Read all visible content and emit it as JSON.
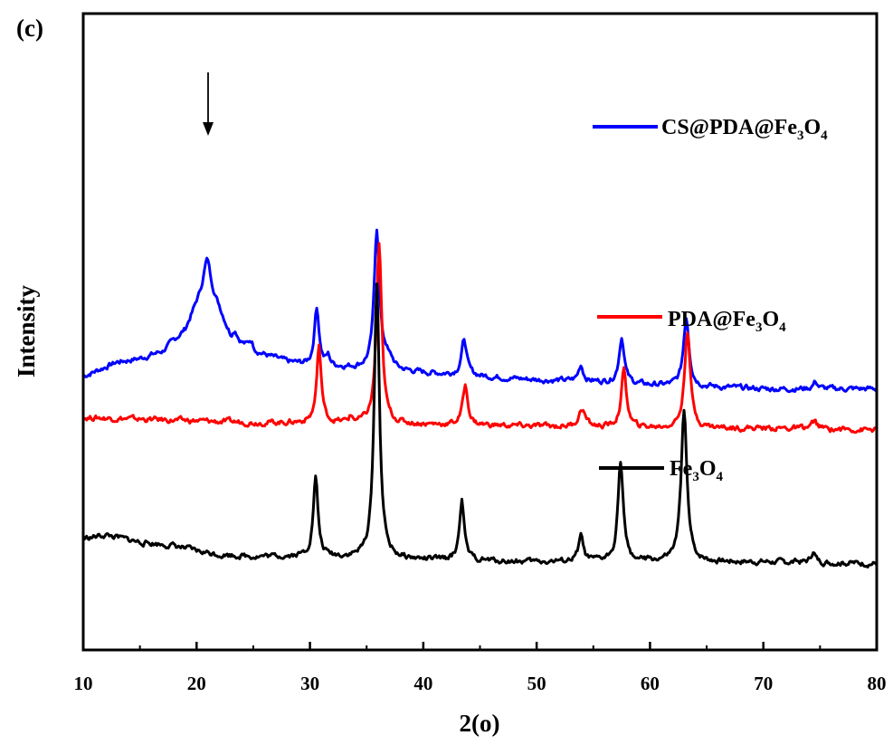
{
  "panel_label": "(c)",
  "chart_data": {
    "type": "line",
    "title": "",
    "xlabel": "2(o)",
    "ylabel": "Intensity",
    "xlim": [
      10,
      80
    ],
    "x_ticks": [
      10,
      20,
      30,
      40,
      50,
      60,
      70,
      80
    ],
    "y_ticks_shown": false,
    "grid": false,
    "legend_placement": "inline-right",
    "annotation": {
      "type": "arrow",
      "x": 21,
      "points_to": "CS@PDA@Fe3O4 broad peak"
    },
    "series": [
      {
        "name": "CS@PDA@Fe3O4",
        "legend_parts": {
          "a": "CS@PDA@Fe",
          "s1": "3",
          "b": "O",
          "s2": "4"
        },
        "color": "#0000ff",
        "baseline": 0.23,
        "background": [
          [
            10,
            0.02
          ],
          [
            13,
            0.1
          ],
          [
            15,
            0.12
          ],
          [
            17,
            0.16
          ],
          [
            19,
            0.28
          ],
          [
            20,
            0.42
          ],
          [
            21,
            0.52
          ],
          [
            22,
            0.4
          ],
          [
            23,
            0.24
          ],
          [
            25,
            0.16
          ],
          [
            28,
            0.1
          ],
          [
            30,
            0.08
          ],
          [
            33,
            0.07
          ],
          [
            36,
            0.06
          ],
          [
            40,
            0.04
          ],
          [
            45,
            0.02
          ],
          [
            50,
            0.0
          ],
          [
            55,
            -0.01
          ],
          [
            60,
            -0.03
          ],
          [
            65,
            -0.04
          ],
          [
            70,
            -0.05
          ],
          [
            75,
            -0.05
          ],
          [
            80,
            -0.05
          ]
        ],
        "peaks": [
          [
            20.9,
            0.16,
            0.4
          ],
          [
            23.4,
            0.05,
            0.25
          ],
          [
            24.8,
            0.05,
            0.25
          ],
          [
            30.6,
            0.33,
            0.25
          ],
          [
            31.6,
            0.05,
            0.2
          ],
          [
            35.9,
            0.78,
            0.28
          ],
          [
            36.7,
            0.06,
            0.3
          ],
          [
            37.2,
            0.03,
            0.3
          ],
          [
            43.6,
            0.2,
            0.28
          ],
          [
            53.9,
            0.09,
            0.25
          ],
          [
            57.5,
            0.26,
            0.28
          ],
          [
            63.2,
            0.39,
            0.3
          ],
          [
            74.6,
            0.04,
            0.25
          ]
        ]
      },
      {
        "name": "PDA@Fe3O4",
        "legend_parts": {
          "a": "PDA@Fe",
          "s1": "3",
          "b": "O",
          "s2": "4"
        },
        "color": "#ff0000",
        "baseline": 0.0,
        "background": [
          [
            10,
            0.02
          ],
          [
            15,
            0.01
          ],
          [
            20,
            0.0
          ],
          [
            25,
            -0.01
          ],
          [
            30,
            -0.01
          ],
          [
            40,
            -0.02
          ],
          [
            50,
            -0.03
          ],
          [
            60,
            -0.04
          ],
          [
            70,
            -0.04
          ],
          [
            80,
            -0.05
          ]
        ],
        "peaks": [
          [
            30.8,
            0.42,
            0.25
          ],
          [
            33.6,
            0.03,
            0.2
          ],
          [
            36.1,
            1.0,
            0.28
          ],
          [
            43.7,
            0.22,
            0.28
          ],
          [
            54.0,
            0.1,
            0.35
          ],
          [
            57.7,
            0.32,
            0.28
          ],
          [
            63.3,
            0.55,
            0.3
          ],
          [
            74.5,
            0.04,
            0.3
          ]
        ]
      },
      {
        "name": "Fe3O4",
        "legend_parts": {
          "a": "Fe",
          "s1": "3",
          "b": "O",
          "s2": "4"
        },
        "color": "#000000",
        "baseline": -0.78,
        "background": [
          [
            10,
            0.12
          ],
          [
            12,
            0.14
          ],
          [
            15,
            0.1
          ],
          [
            18,
            0.08
          ],
          [
            20,
            0.05
          ],
          [
            22,
            0.03
          ],
          [
            25,
            0.02
          ],
          [
            30,
            0.02
          ],
          [
            40,
            0.0
          ],
          [
            50,
            -0.01
          ],
          [
            60,
            -0.01
          ],
          [
            70,
            -0.01
          ],
          [
            80,
            -0.02
          ]
        ],
        "peaks": [
          [
            30.5,
            0.44,
            0.25
          ],
          [
            35.9,
            1.54,
            0.28
          ],
          [
            43.4,
            0.34,
            0.25
          ],
          [
            53.9,
            0.14,
            0.25
          ],
          [
            57.4,
            0.56,
            0.28
          ],
          [
            63.0,
            0.86,
            0.3
          ],
          [
            74.4,
            0.06,
            0.25
          ]
        ]
      }
    ]
  }
}
